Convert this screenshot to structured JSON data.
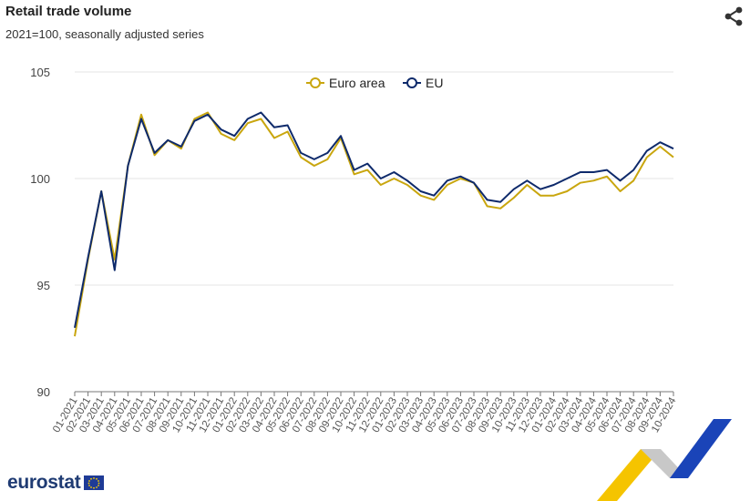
{
  "header": {
    "title": "Retail trade volume",
    "subtitle": "2021=100, seasonally adjusted series"
  },
  "icons": {
    "share": "share-icon",
    "flag": "eu-flag-icon"
  },
  "logo": {
    "text": "eurostat"
  },
  "colors": {
    "euro_area": "#c9a60e",
    "eu": "#0e2a6b",
    "grid": "#e4e4e4",
    "axis": "#777777"
  },
  "chart_data": {
    "type": "line",
    "x": [
      "01-2021",
      "02-2021",
      "03-2021",
      "04-2021",
      "05-2021",
      "06-2021",
      "07-2021",
      "08-2021",
      "09-2021",
      "10-2021",
      "11-2021",
      "12-2021",
      "01-2022",
      "02-2022",
      "03-2022",
      "04-2022",
      "05-2022",
      "06-2022",
      "07-2022",
      "08-2022",
      "09-2022",
      "10-2022",
      "11-2022",
      "12-2022",
      "01-2023",
      "02-2023",
      "03-2023",
      "04-2023",
      "05-2023",
      "06-2023",
      "07-2023",
      "08-2023",
      "09-2023",
      "10-2023",
      "11-2023",
      "12-2023",
      "01-2024",
      "02-2024",
      "03-2024",
      "04-2024",
      "05-2024",
      "06-2024",
      "07-2024",
      "08-2024",
      "09-2024",
      "10-2024"
    ],
    "series": [
      {
        "name": "Euro area",
        "values": [
          92.6,
          96.2,
          99.4,
          96.2,
          100.6,
          103.0,
          101.1,
          101.8,
          101.4,
          102.8,
          103.1,
          102.1,
          101.8,
          102.6,
          102.8,
          101.9,
          102.2,
          101.0,
          100.6,
          100.9,
          101.9,
          100.2,
          100.4,
          99.7,
          100.0,
          99.7,
          99.2,
          99.0,
          99.7,
          100.0,
          99.8,
          98.7,
          98.6,
          99.1,
          99.7,
          99.2,
          99.2,
          99.4,
          99.8,
          99.9,
          100.1,
          99.4,
          99.9,
          101.0,
          101.5,
          101.0
        ]
      },
      {
        "name": "EU",
        "values": [
          93.0,
          96.3,
          99.4,
          95.7,
          100.6,
          102.8,
          101.2,
          101.8,
          101.5,
          102.7,
          103.0,
          102.3,
          102.0,
          102.8,
          103.1,
          102.4,
          102.5,
          101.2,
          100.9,
          101.2,
          102.0,
          100.4,
          100.7,
          100.0,
          100.3,
          99.9,
          99.4,
          99.2,
          99.9,
          100.1,
          99.8,
          99.0,
          98.9,
          99.5,
          99.9,
          99.5,
          99.7,
          100.0,
          100.3,
          100.3,
          100.4,
          99.9,
          100.4,
          101.3,
          101.7,
          101.4
        ]
      }
    ],
    "ylim": [
      90,
      105
    ],
    "yticks": [
      90,
      95,
      100,
      105
    ],
    "grid": true,
    "legend": "top-center"
  }
}
